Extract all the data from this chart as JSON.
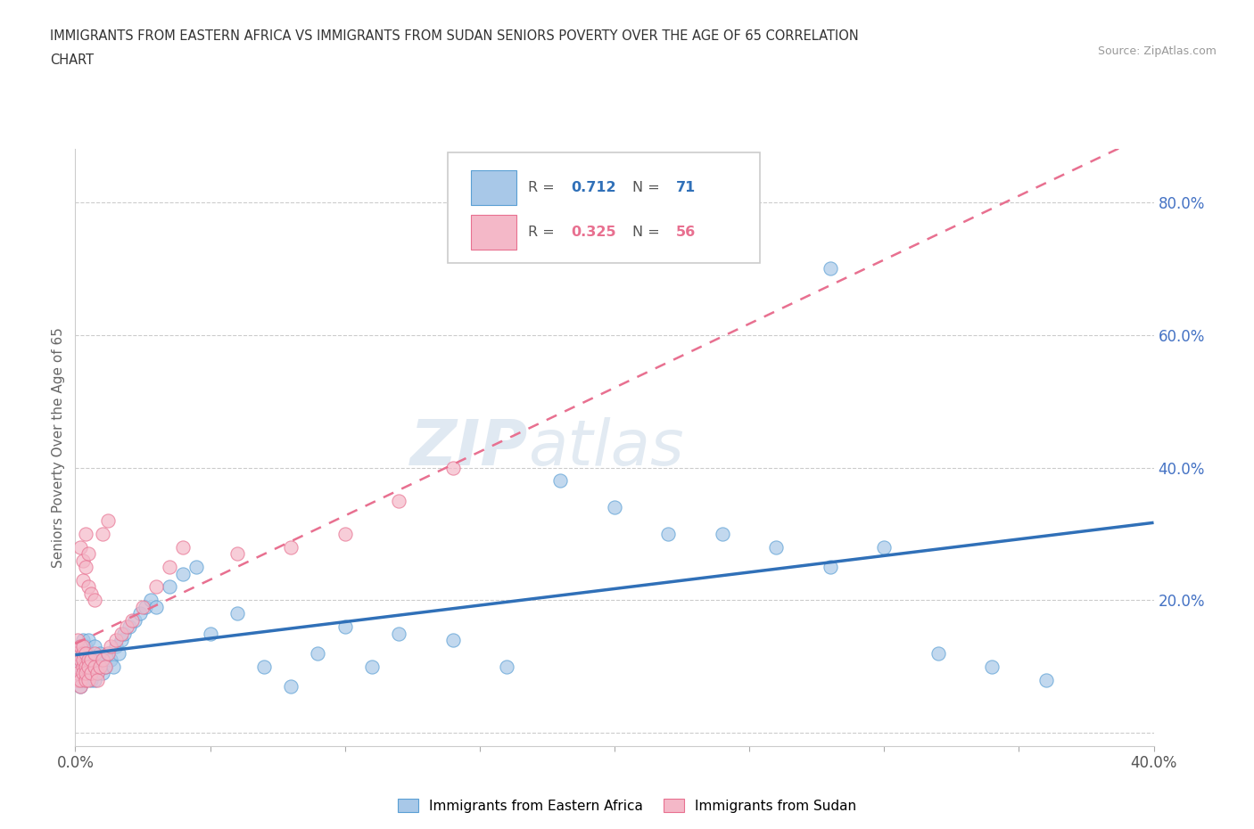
{
  "title_line1": "IMMIGRANTS FROM EASTERN AFRICA VS IMMIGRANTS FROM SUDAN SENIORS POVERTY OVER THE AGE OF 65 CORRELATION",
  "title_line2": "CHART",
  "source": "Source: ZipAtlas.com",
  "ylabel": "Seniors Poverty Over the Age of 65",
  "xlim": [
    0.0,
    0.4
  ],
  "ylim": [
    -0.02,
    0.88
  ],
  "yticks": [
    0.0,
    0.2,
    0.4,
    0.6,
    0.8
  ],
  "xticks": [
    0.0,
    0.05,
    0.1,
    0.15,
    0.2,
    0.25,
    0.3,
    0.35,
    0.4
  ],
  "blue_color": "#a8c8e8",
  "blue_edge_color": "#5a9fd4",
  "pink_color": "#f4b8c8",
  "pink_edge_color": "#e87090",
  "blue_line_color": "#3070b8",
  "pink_line_color": "#e87090",
  "ytick_color": "#4472c4",
  "watermark": "ZIPatlas",
  "legend_label1": "Immigrants from Eastern Africa",
  "legend_label2": "Immigrants from Sudan",
  "background_color": "#ffffff",
  "grid_color": "#cccccc",
  "blue_scatter_x": [
    0.001,
    0.001,
    0.001,
    0.002,
    0.002,
    0.002,
    0.002,
    0.002,
    0.003,
    0.003,
    0.003,
    0.003,
    0.003,
    0.004,
    0.004,
    0.004,
    0.004,
    0.005,
    0.005,
    0.005,
    0.005,
    0.006,
    0.006,
    0.006,
    0.007,
    0.007,
    0.007,
    0.008,
    0.008,
    0.009,
    0.009,
    0.01,
    0.01,
    0.011,
    0.012,
    0.013,
    0.014,
    0.015,
    0.016,
    0.017,
    0.018,
    0.02,
    0.022,
    0.024,
    0.026,
    0.028,
    0.03,
    0.035,
    0.04,
    0.045,
    0.05,
    0.06,
    0.07,
    0.08,
    0.09,
    0.1,
    0.11,
    0.12,
    0.14,
    0.16,
    0.18,
    0.2,
    0.22,
    0.24,
    0.26,
    0.28,
    0.3,
    0.32,
    0.34,
    0.36,
    0.28
  ],
  "blue_scatter_y": [
    0.08,
    0.1,
    0.12,
    0.07,
    0.09,
    0.11,
    0.13,
    0.1,
    0.08,
    0.11,
    0.14,
    0.09,
    0.12,
    0.1,
    0.13,
    0.08,
    0.11,
    0.09,
    0.12,
    0.1,
    0.14,
    0.08,
    0.11,
    0.09,
    0.1,
    0.13,
    0.08,
    0.11,
    0.09,
    0.1,
    0.12,
    0.11,
    0.09,
    0.1,
    0.12,
    0.11,
    0.1,
    0.13,
    0.12,
    0.14,
    0.15,
    0.16,
    0.17,
    0.18,
    0.19,
    0.2,
    0.19,
    0.22,
    0.24,
    0.25,
    0.15,
    0.18,
    0.1,
    0.07,
    0.12,
    0.16,
    0.1,
    0.15,
    0.14,
    0.1,
    0.38,
    0.34,
    0.3,
    0.3,
    0.28,
    0.25,
    0.28,
    0.12,
    0.1,
    0.08,
    0.7
  ],
  "pink_scatter_x": [
    0.001,
    0.001,
    0.001,
    0.001,
    0.001,
    0.002,
    0.002,
    0.002,
    0.002,
    0.003,
    0.003,
    0.003,
    0.003,
    0.003,
    0.004,
    0.004,
    0.004,
    0.004,
    0.005,
    0.005,
    0.005,
    0.006,
    0.006,
    0.007,
    0.007,
    0.008,
    0.008,
    0.009,
    0.01,
    0.011,
    0.012,
    0.013,
    0.015,
    0.017,
    0.019,
    0.021,
    0.025,
    0.03,
    0.035,
    0.04,
    0.01,
    0.012,
    0.06,
    0.08,
    0.1,
    0.12,
    0.14,
    0.002,
    0.003,
    0.004,
    0.005,
    0.003,
    0.004,
    0.005,
    0.006,
    0.007
  ],
  "pink_scatter_y": [
    0.08,
    0.1,
    0.12,
    0.14,
    0.09,
    0.07,
    0.11,
    0.13,
    0.08,
    0.1,
    0.12,
    0.09,
    0.11,
    0.13,
    0.08,
    0.1,
    0.12,
    0.09,
    0.11,
    0.08,
    0.1,
    0.09,
    0.11,
    0.1,
    0.12,
    0.09,
    0.08,
    0.1,
    0.11,
    0.1,
    0.12,
    0.13,
    0.14,
    0.15,
    0.16,
    0.17,
    0.19,
    0.22,
    0.25,
    0.28,
    0.3,
    0.32,
    0.27,
    0.28,
    0.3,
    0.35,
    0.4,
    0.28,
    0.26,
    0.3,
    0.27,
    0.23,
    0.25,
    0.22,
    0.21,
    0.2
  ]
}
